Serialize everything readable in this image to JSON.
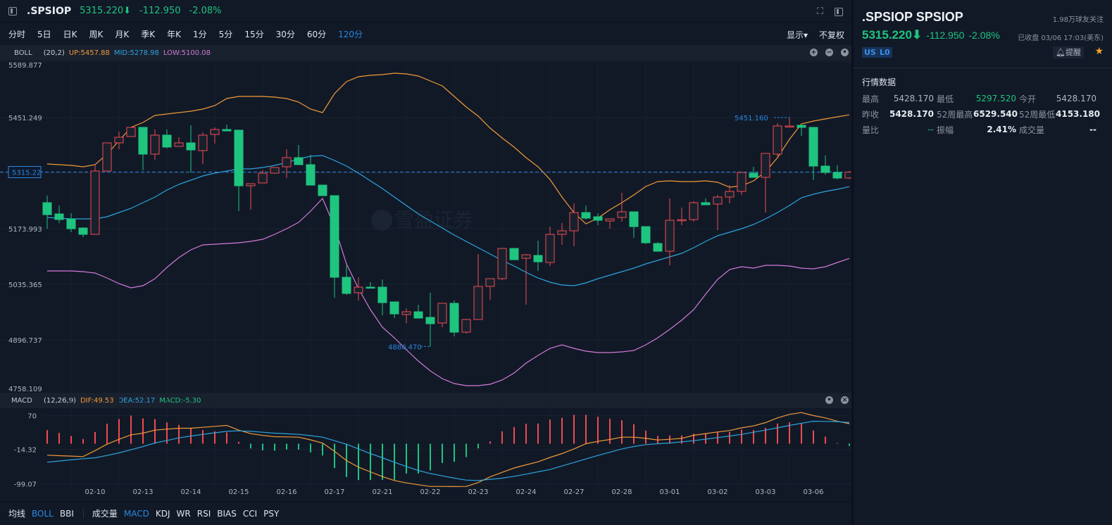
{
  "header": {
    "symbol": ".SPSIOP",
    "price": "5315.220⬇",
    "change": "-112.950",
    "change_pct": "-2.08%"
  },
  "tabs": [
    {
      "label": "分时"
    },
    {
      "label": "5日"
    },
    {
      "label": "日K"
    },
    {
      "label": "周K"
    },
    {
      "label": "月K"
    },
    {
      "label": "季K"
    },
    {
      "label": "年K"
    },
    {
      "label": "1分"
    },
    {
      "label": "5分"
    },
    {
      "label": "15分"
    },
    {
      "label": "30分"
    },
    {
      "label": "60分"
    },
    {
      "label": "120分",
      "active": true
    }
  ],
  "tabs_right": {
    "display": "显示▾",
    "adjust": "不复权"
  },
  "boll": {
    "name": "BOLL",
    "params": "(20,2)",
    "up": "UP:5457.88",
    "mid": "MID:5278.98",
    "low": "LOW:5100.08"
  },
  "macd_legend": {
    "name": "MACD",
    "params": "(12,26,9)",
    "dif": "DIF:49.53",
    "dea": "DEA:52.17",
    "macd": "MACD:-5.30"
  },
  "current_price_label": "5315.22",
  "high_marker": "5451.160",
  "low_marker": "4880.470",
  "watermark": "雪盈证券",
  "colors": {
    "up": "#ef4b4f",
    "down": "#1fc47f",
    "boll_up": "#f09a37",
    "boll_mid": "#2da3dc",
    "boll_low": "#d27ad6",
    "dif": "#f09a37",
    "dea": "#2da3dc",
    "accent": "#2a86e0"
  },
  "chart_data": [
    {
      "type": "candlestick",
      "title": "BOLL",
      "ylim": [
        4758.109,
        5589.877
      ],
      "y_ticks": [
        "5589.877",
        "5451.249",
        "5173.993",
        "5035.365",
        "4896.737",
        "4758.109"
      ],
      "y_tick_values": [
        5589.877,
        5451.249,
        5173.993,
        5035.365,
        4896.737,
        4758.109
      ],
      "x_tick_labels": [
        "02-10",
        "02-13",
        "02-14",
        "02-15",
        "02-16",
        "02-17",
        "02-21",
        "02-22",
        "02-23",
        "02-24",
        "02-27",
        "02-28",
        "03-01",
        "03-02",
        "03-03",
        "03-06"
      ],
      "x_tick_candle_index": [
        4,
        8,
        12,
        16,
        20,
        24,
        28,
        32,
        36,
        40,
        44,
        48,
        52,
        56,
        60,
        64
      ],
      "ohlc_fields": [
        "open",
        "close",
        "high",
        "low"
      ],
      "candles": [
        [
          5239.0,
          5209.1,
          5256.5,
          5174.0
        ],
        [
          5210.9,
          5196.9,
          5231.9,
          5188.1
        ],
        [
          5198.6,
          5174.0,
          5212.6,
          5165.3
        ],
        [
          5175.8,
          5160.0,
          5177.6,
          5153.0
        ],
        [
          5160.0,
          5317.9,
          5331.9,
          5160.0
        ],
        [
          5317.9,
          5388.1,
          5388.1,
          5317.9
        ],
        [
          5388.1,
          5402.1,
          5416.2,
          5372.3
        ],
        [
          5403.9,
          5426.7,
          5426.7,
          5403.9
        ],
        [
          5426.7,
          5360.0,
          5426.7,
          5319.7
        ],
        [
          5360.0,
          5407.4,
          5421.4,
          5346.0
        ],
        [
          5407.4,
          5377.6,
          5421.4,
          5374.1
        ],
        [
          5379.3,
          5388.1,
          5402.1,
          5379.3
        ],
        [
          5388.1,
          5370.5,
          5431.9,
          5314.4
        ],
        [
          5368.8,
          5407.4,
          5414.4,
          5335.5
        ],
        [
          5409.1,
          5421.4,
          5426.7,
          5386.3
        ],
        [
          5421.4,
          5417.9,
          5433.7,
          5417.9
        ],
        [
          5419.7,
          5281.1,
          5419.7,
          5217.9
        ],
        [
          5281.1,
          5286.3,
          5286.3,
          5221.4
        ],
        [
          5288.1,
          5312.6,
          5319.7,
          5288.1
        ],
        [
          5312.6,
          5326.7,
          5326.7,
          5310.9
        ],
        [
          5328.4,
          5351.2,
          5372.3,
          5300.4
        ],
        [
          5351.2,
          5333.7,
          5382.8,
          5333.7
        ],
        [
          5333.7,
          5282.8,
          5358.3,
          5282.8
        ],
        [
          5282.8,
          5256.5,
          5282.8,
          5256.5
        ],
        [
          5256.5,
          5053.0,
          5256.5,
          5002.1
        ],
        [
          5053.0,
          5012.6,
          5082.8,
          5009.1
        ],
        [
          5014.4,
          5028.4,
          5053.0,
          4995.1
        ],
        [
          5028.4,
          5026.7,
          5040.7,
          5024.9
        ],
        [
          5028.4,
          4989.8,
          5047.7,
          4958.2
        ],
        [
          4991.6,
          4961.7,
          4991.6,
          4951.2
        ],
        [
          4960.0,
          4967.0,
          4975.8,
          4938.9
        ],
        [
          4967.0,
          4951.2,
          4984.6,
          4951.2
        ],
        [
          4953.0,
          4937.2,
          5014.4,
          4880.47
        ],
        [
          4938.9,
          4988.1,
          4988.1,
          4928.4
        ],
        [
          4988.1,
          4916.1,
          4995.1,
          4905.6
        ],
        [
          4916.1,
          4947.7,
          4949.5,
          4912.6
        ],
        [
          4947.7,
          5030.2,
          5110.9,
          4947.7
        ],
        [
          5030.2,
          5049.5,
          5049.5,
          4996.8
        ],
        [
          5049.5,
          5124.9,
          5124.9,
          5046.0
        ],
        [
          5124.9,
          5096.8,
          5124.9,
          5096.8
        ],
        [
          5100.4,
          5109.1,
          5110.9,
          4984.6
        ],
        [
          5107.4,
          5091.6,
          5144.2,
          5068.8
        ],
        [
          5089.8,
          5160.0,
          5179.3,
          5081.1
        ],
        [
          5160.0,
          5168.8,
          5188.1,
          5133.7
        ],
        [
          5168.8,
          5214.4,
          5237.2,
          5130.2
        ],
        [
          5214.4,
          5200.4,
          5231.9,
          5196.9
        ],
        [
          5203.9,
          5195.1,
          5212.6,
          5182.8
        ],
        [
          5193.3,
          5198.6,
          5198.6,
          5174.0
        ],
        [
          5202.1,
          5216.2,
          5263.5,
          5191.6
        ],
        [
          5216.2,
          5179.3,
          5216.2,
          5151.2
        ],
        [
          5179.3,
          5139.0,
          5179.3,
          5135.4
        ],
        [
          5137.2,
          5117.9,
          5140.7,
          5117.9
        ],
        [
          5117.9,
          5195.1,
          5249.5,
          5082.8
        ],
        [
          5195.1,
          5196.5,
          5226.7,
          5182.8
        ],
        [
          5196.9,
          5239.0,
          5242.5,
          5191.6
        ],
        [
          5239.0,
          5233.7,
          5249.5,
          5233.7
        ],
        [
          5235.4,
          5253.0,
          5258.3,
          5170.5
        ],
        [
          5253.0,
          5267.0,
          5282.8,
          5237.2
        ],
        [
          5267.0,
          5314.4,
          5314.4,
          5258.3
        ],
        [
          5312.6,
          5302.1,
          5328.4,
          5302.1
        ],
        [
          5302.1,
          5361.8,
          5361.8,
          5214.4
        ],
        [
          5360.0,
          5430.2,
          5437.2,
          5354.8
        ],
        [
          5428.4,
          5430.2,
          5451.16,
          5428.4
        ],
        [
          5431.9,
          5426.7,
          5431.9,
          5405.6
        ],
        [
          5426.7,
          5330.2,
          5426.7,
          5295.1
        ],
        [
          5330.2,
          5314.4,
          5356.5,
          5309.1
        ],
        [
          5314.4,
          5300.4,
          5331.9,
          5296.9
        ],
        [
          5300.4,
          5315.22,
          5317.9,
          5298.6
        ]
      ],
      "series": [
        {
          "name": "UP",
          "values": [
            5335.5,
            5333.7,
            5331.9,
            5328.4,
            5333.7,
            5360.0,
            5393.4,
            5426.7,
            5438.9,
            5456.5,
            5460.0,
            5463.5,
            5467.0,
            5472.3,
            5481.1,
            5498.6,
            5503.9,
            5503.9,
            5503.9,
            5502.1,
            5498.6,
            5489.8,
            5472.3,
            5463.5,
            5510.9,
            5540.7,
            5553.0,
            5556.5,
            5558.2,
            5561.8,
            5560.0,
            5554.8,
            5542.5,
            5530.2,
            5503.9,
            5477.5,
            5454.7,
            5424.9,
            5400.4,
            5377.6,
            5351.2,
            5328.4,
            5296.9,
            5253.0,
            5214.4,
            5186.3,
            5200.4,
            5221.4,
            5239.0,
            5258.3,
            5279.3,
            5291.6,
            5293.3,
            5291.6,
            5291.6,
            5293.3,
            5289.8,
            5277.5,
            5281.1,
            5293.3,
            5316.1,
            5351.2,
            5396.9,
            5435.4,
            5442.5,
            5447.7,
            5453.0,
            5457.88
          ]
        },
        {
          "name": "MID",
          "values": [
            5202.1,
            5200.4,
            5198.6,
            5198.6,
            5198.6,
            5203.9,
            5214.4,
            5224.9,
            5239.0,
            5253.0,
            5270.5,
            5284.6,
            5295.1,
            5305.6,
            5312.6,
            5317.9,
            5323.2,
            5323.2,
            5326.7,
            5331.9,
            5338.9,
            5347.7,
            5354.8,
            5356.5,
            5344.2,
            5330.2,
            5312.6,
            5293.3,
            5274.0,
            5253.0,
            5231.9,
            5210.9,
            5193.3,
            5175.8,
            5158.2,
            5142.5,
            5126.7,
            5110.9,
            5095.1,
            5081.1,
            5065.3,
            5051.2,
            5040.7,
            5033.7,
            5031.9,
            5038.9,
            5049.5,
            5058.2,
            5067.0,
            5075.8,
            5086.3,
            5095.1,
            5103.9,
            5112.6,
            5126.7,
            5142.5,
            5156.5,
            5165.3,
            5174.0,
            5184.6,
            5198.6,
            5214.4,
            5231.9,
            5251.3,
            5260.0,
            5267.0,
            5272.3,
            5278.98
          ]
        },
        {
          "name": "LOW",
          "values": [
            5068.8,
            5068.8,
            5068.8,
            5067.0,
            5063.5,
            5051.2,
            5037.2,
            5026.7,
            5031.9,
            5049.5,
            5077.5,
            5102.1,
            5121.4,
            5133.7,
            5135.4,
            5137.2,
            5139.0,
            5142.5,
            5147.7,
            5160.0,
            5174.0,
            5189.8,
            5217.9,
            5249.5,
            5179.3,
            5086.3,
            5024.9,
            4972.3,
            4928.4,
            4902.1,
            4872.3,
            4844.2,
            4819.6,
            4800.3,
            4788.0,
            4782.8,
            4782.8,
            4786.3,
            4796.8,
            4814.4,
            4838.9,
            4858.2,
            4875.8,
            4884.5,
            4875.8,
            4868.8,
            4865.2,
            4865.2,
            4867.0,
            4870.5,
            4884.5,
            4902.1,
            4923.1,
            4945.9,
            4972.3,
            5010.8,
            5047.7,
            5072.3,
            5079.3,
            5075.8,
            5082.8,
            5082.8,
            5081.1,
            5075.8,
            5074.0,
            5079.3,
            5089.8,
            5100.08
          ]
        }
      ]
    },
    {
      "type": "bar+line",
      "title": "MACD",
      "ylim": [
        -99.07,
        70
      ],
      "y_ticks": [
        "70",
        "-14.32",
        "-99.07"
      ],
      "y_tick_values": [
        70,
        -14.32,
        -99.07
      ],
      "series": [
        {
          "name": "MACD",
          "type": "bar",
          "values": [
            33.6,
            26.7,
            19.1,
            11.6,
            29,
            49.3,
            60.9,
            69.6,
            62.6,
            60.9,
            52.8,
            46.4,
            39.4,
            33.6,
            30.7,
            27.8,
            4.6,
            -11.6,
            -16.2,
            -17.4,
            -14.5,
            -14.5,
            -21.5,
            -29,
            -60.3,
            -82.4,
            -89.9,
            -89.9,
            -89.3,
            -89.3,
            -73.7,
            -73.7,
            -66.1,
            -47.6,
            -44.7,
            -33.1,
            -11.6,
            5.8,
            30.7,
            41.2,
            49.3,
            49.9,
            59.7,
            63.8,
            71.3,
            71.3,
            66.7,
            61.5,
            58,
            48.1,
            32.5,
            19.1,
            20.3,
            20.3,
            24.9,
            24.9,
            29,
            29,
            34.8,
            33.6,
            39.4,
            49.9,
            52.8,
            49.9,
            32.5,
            17.4,
            1.7,
            -5.3
          ]
        },
        {
          "name": "DIF",
          "type": "line",
          "values": [
            -28.4,
            -29.5,
            -30.6,
            -31.9,
            -17,
            -1.2,
            11,
            22,
            26.1,
            33.6,
            36,
            38.3,
            38.3,
            40.5,
            43,
            45.2,
            33.6,
            24.9,
            20.5,
            17.4,
            16.8,
            16.2,
            9.5,
            1.7,
            -18.6,
            -41.8,
            -58,
            -69.6,
            -81.2,
            -91,
            -96.9,
            -101.5,
            -105.6,
            -105.6,
            -106,
            -105.6,
            -96,
            -82,
            -70.8,
            -60,
            -52.2,
            -44.7,
            -34,
            -24.4,
            -12.8,
            0,
            5.8,
            10.4,
            16.2,
            16.2,
            13.3,
            9.3,
            11,
            13.3,
            20.9,
            25,
            29,
            32.5,
            39.4,
            44,
            52.2,
            63.8,
            72.5,
            77.1,
            69.6,
            63.8,
            55.5,
            49.53
          ]
        },
        {
          "name": "DEA",
          "type": "line",
          "values": [
            -45.8,
            -42.8,
            -39.9,
            -37.1,
            -34.8,
            -29,
            -22.6,
            -15,
            -7,
            1.7,
            8,
            14.5,
            19,
            23.2,
            27,
            30.7,
            31.9,
            30.7,
            28.4,
            26.1,
            24.6,
            23.2,
            20,
            16.2,
            7.5,
            -1.2,
            -12.8,
            -24.4,
            -34.8,
            -45.8,
            -56.3,
            -66.1,
            -73.7,
            -79.5,
            -85,
            -89.9,
            -91,
            -88,
            -85.3,
            -80.5,
            -75.4,
            -69.5,
            -63.8,
            -55,
            -46.4,
            -37.5,
            -29,
            -21,
            -12.8,
            -7,
            -2.3,
            0,
            1.7,
            4.5,
            7.5,
            11.3,
            15.1,
            19,
            23.2,
            28.4,
            33.6,
            39.4,
            45.2,
            50.5,
            55.7,
            55.1,
            54.6,
            52.17
          ]
        }
      ]
    }
  ],
  "bottom_toolbar": {
    "main": [
      {
        "label": "均线"
      },
      {
        "label": "BOLL",
        "active": true
      },
      {
        "label": "BBI"
      }
    ],
    "sub": [
      {
        "label": "成交量"
      },
      {
        "label": "MACD",
        "active": true
      },
      {
        "label": "KDJ"
      },
      {
        "label": "WR"
      },
      {
        "label": "RSI"
      },
      {
        "label": "BIAS"
      },
      {
        "label": "CCI"
      },
      {
        "label": "PSY"
      }
    ]
  },
  "panel": {
    "title": ".SPSIOP SPSIOP",
    "followers": "1.98万球友关注",
    "price": "5315.220⬇",
    "change": "-112.950",
    "change_pct": "-2.08%",
    "status": "已收盘 03/06 17:03(美东)",
    "badges": [
      "US",
      "L0"
    ],
    "remind": "提醒",
    "section": "行情数据",
    "quotes": [
      [
        {
          "l": "最高",
          "v": "5428.170"
        },
        {
          "l": "最低",
          "v": "5297.520",
          "c": "g"
        },
        {
          "l": "今开",
          "v": "5428.170"
        }
      ],
      [
        {
          "l": "昨收",
          "v": "5428.170",
          "c": "bold"
        },
        {
          "l": "52周最高",
          "v": "6529.540",
          "c": "bold"
        },
        {
          "l": "52周最低",
          "v": "4153.180",
          "c": "bold"
        }
      ],
      [
        {
          "l": "量比",
          "v": "--",
          "c": "g"
        },
        {
          "l": "振幅",
          "v": "2.41%",
          "c": "bold"
        },
        {
          "l": "成交量",
          "v": "--",
          "c": "bold"
        }
      ]
    ]
  }
}
